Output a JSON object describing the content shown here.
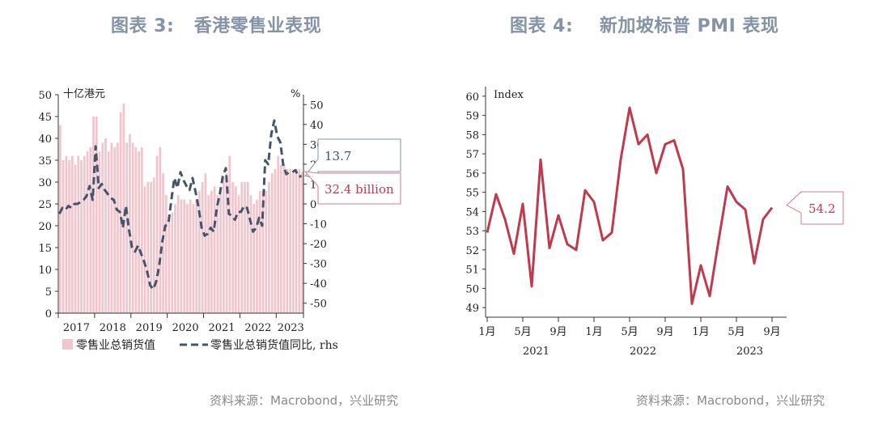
{
  "left": {
    "title": "图表 3:   香港零售业表现",
    "source": "资料来源：Macrobond，兴业研究",
    "chart_data": {
      "type": "bar",
      "left_axis_label": "十亿港元",
      "right_axis_label": "%",
      "ylim_left": [
        0,
        50
      ],
      "yticks_left": [
        "0",
        "5",
        "10",
        "15",
        "20",
        "25",
        "30",
        "35",
        "40",
        "45",
        "50"
      ],
      "ylim_right": [
        -55,
        55
      ],
      "yticks_right": [
        "-50",
        "-40",
        "-30",
        "-20",
        "-10",
        "0",
        "10",
        "20",
        "30",
        "40",
        "50"
      ],
      "year_labels": [
        "2017",
        "2018",
        "2019",
        "2020",
        "2021",
        "2022",
        "2023"
      ],
      "x_start": 2017.0,
      "x_end": 2023.75,
      "legend_bar": "零售业总销货值",
      "legend_line": "零售业总销货值同比, rhs",
      "bar_series": {
        "name": "零售业总销货值",
        "color": "#f2c4cc",
        "x_start": 2017.0,
        "x_step_months": 1,
        "values": [
          43,
          35,
          36,
          35,
          36,
          34,
          36,
          35,
          36,
          37,
          38,
          45,
          45,
          37,
          39,
          40,
          37,
          39,
          38,
          39,
          46,
          48,
          39,
          41,
          39,
          38,
          37,
          38,
          29,
          30,
          30,
          31,
          36,
          38,
          32,
          27,
          22,
          23,
          25,
          27,
          26,
          26,
          25,
          26,
          25,
          26,
          28,
          30,
          32,
          27,
          28,
          29,
          27,
          28,
          31,
          32,
          36,
          30,
          29,
          27,
          30,
          30,
          30,
          27,
          25,
          26,
          28,
          28,
          28,
          30,
          32,
          33,
          36,
          34,
          34,
          33,
          33,
          32,
          33,
          33,
          32.4
        ]
      },
      "line_series": {
        "name": "零售业总销货值同比, rhs",
        "color": "#44546a",
        "x_start": 2017.0,
        "x_step_months": 1,
        "values": [
          -5,
          -2,
          -3,
          -1,
          -2,
          0,
          0,
          1,
          2,
          4,
          9,
          2,
          29,
          8,
          10,
          7,
          5,
          3,
          2,
          -3,
          -4,
          -12,
          -1,
          -13,
          -22,
          -24,
          -21,
          -25,
          -29,
          -34,
          -41,
          -43,
          -39,
          -31,
          -19,
          -11,
          -10,
          2,
          13,
          8,
          16,
          12,
          9,
          7,
          13,
          6,
          -2,
          -12,
          -16,
          -15,
          -12,
          -14,
          -2,
          5,
          14,
          18,
          -5,
          -6,
          -8,
          -4,
          -4,
          -1,
          -2,
          -8,
          -14,
          -12,
          -7,
          -11,
          22,
          20,
          35,
          42,
          34,
          31,
          19,
          15,
          16,
          16,
          17,
          13.7,
          14
        ]
      },
      "callout_line": "13.7",
      "callout_bar": "32.4 billion"
    }
  },
  "right": {
    "title": "图表 4:    新加坡标普 PMI 表现",
    "source": "资料来源：Macrobond，兴业研究",
    "chart_data": {
      "type": "line",
      "axis_label": "Index",
      "ylim": [
        48.5,
        60.5
      ],
      "yticks": [
        "49",
        "50",
        "51",
        "52",
        "53",
        "54",
        "55",
        "56",
        "57",
        "58",
        "59",
        "60"
      ],
      "x_tick_labels": [
        "1月",
        "5月",
        "9月",
        "1月",
        "5月",
        "9月",
        "1月",
        "5月",
        "9月"
      ],
      "year_labels": [
        "2021",
        "2022",
        "2023"
      ],
      "series": [
        {
          "color": "#c0394f",
          "x_start_months": 0,
          "values": [
            52.9,
            54.9,
            53.6,
            51.8,
            54.4,
            50.1,
            56.7,
            52.1,
            53.8,
            52.3,
            52.0,
            55.1,
            54.5,
            52.5,
            52.9,
            56.7,
            59.4,
            57.5,
            58.0,
            56.0,
            57.5,
            57.7,
            56.2,
            49.2,
            51.2,
            49.6,
            52.5,
            55.3,
            54.5,
            54.1,
            51.3,
            53.6,
            54.2
          ]
        }
      ],
      "callout": "54.2"
    }
  }
}
